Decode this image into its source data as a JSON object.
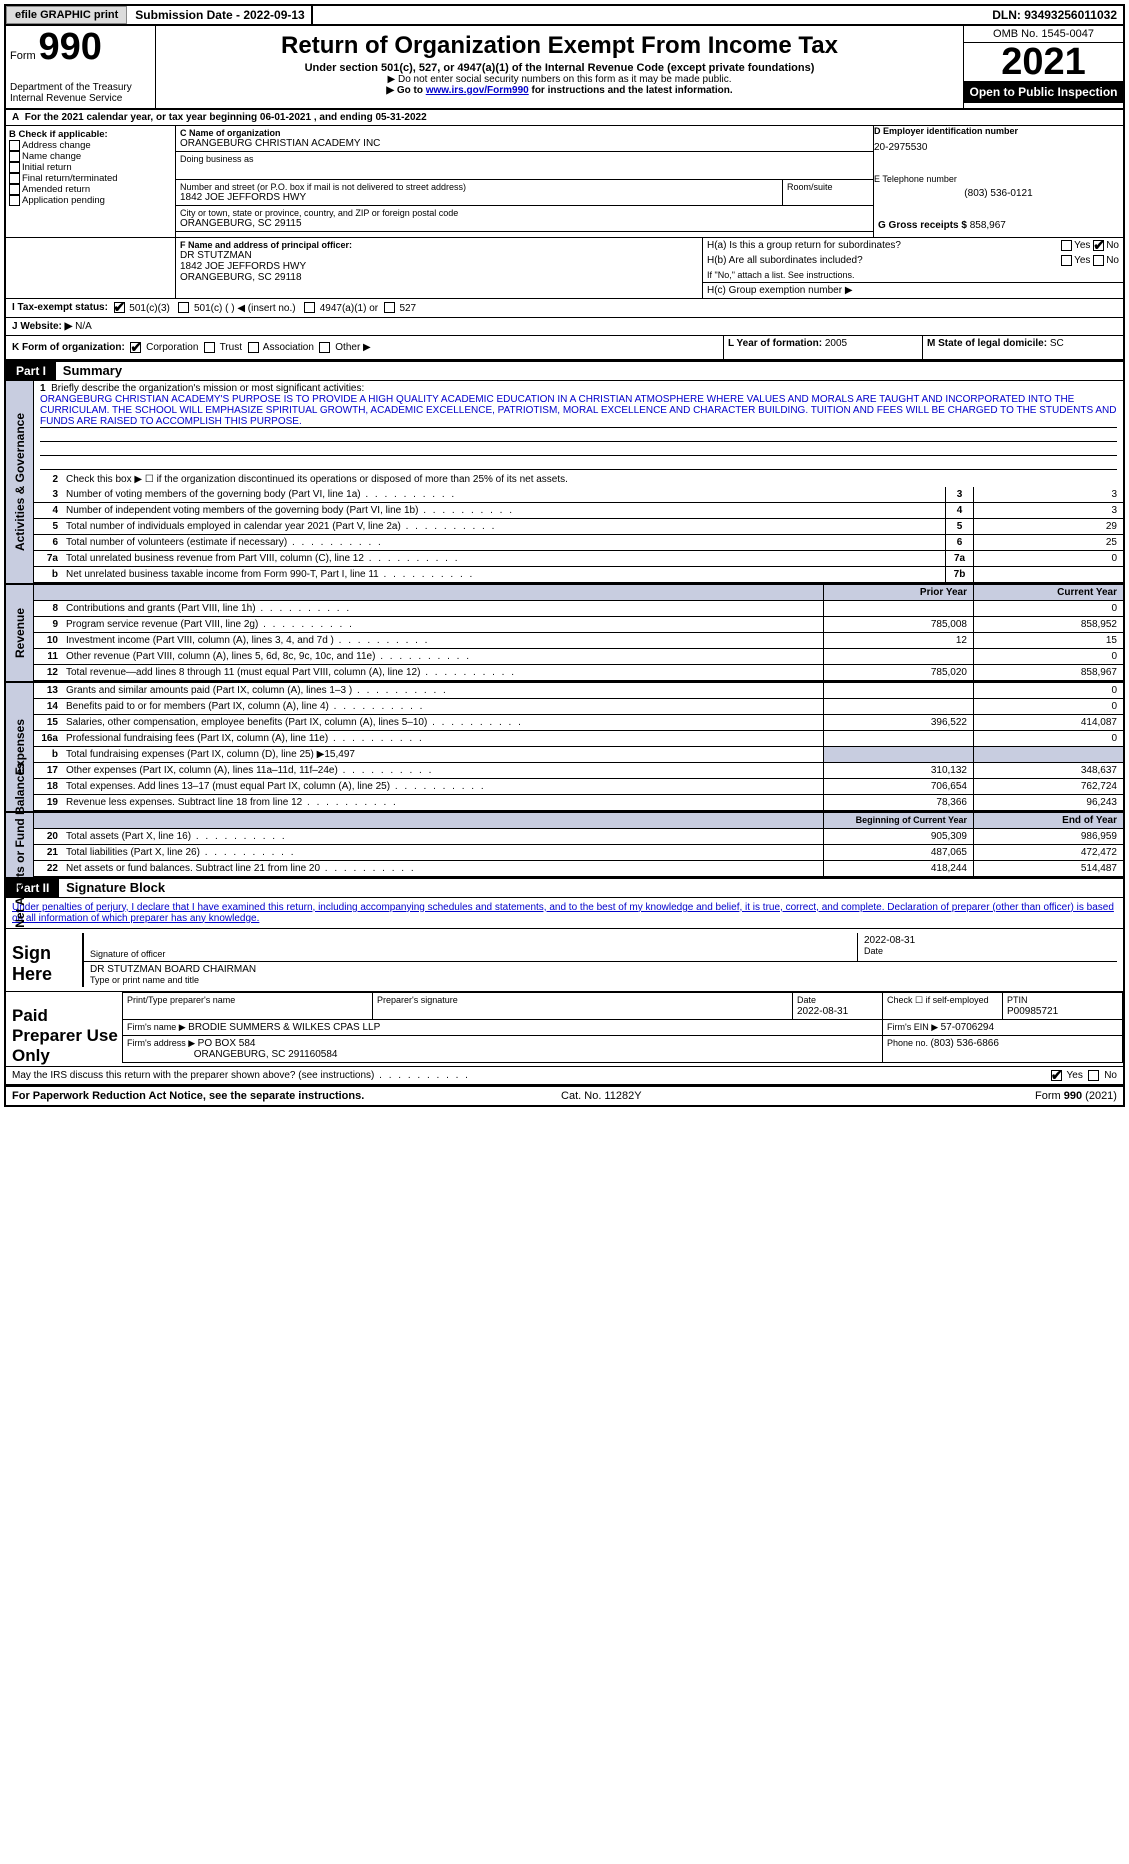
{
  "topbar": {
    "efile": "efile GRAPHIC print",
    "subdate_label": "Submission Date - ",
    "subdate": "2022-09-13",
    "dln_label": "DLN: ",
    "dln": "93493256011032"
  },
  "header": {
    "form_word": "Form",
    "form_num": "990",
    "dept": "Department of the Treasury",
    "irs": "Internal Revenue Service",
    "title": "Return of Organization Exempt From Income Tax",
    "sub1": "Under section 501(c), 527, or 4947(a)(1) of the Internal Revenue Code (except private foundations)",
    "sub2": "▶ Do not enter social security numbers on this form as it may be made public.",
    "sub3a": "▶ Go to ",
    "sub3link": "www.irs.gov/Form990",
    "sub3b": " for instructions and the latest information.",
    "omb": "OMB No. 1545-0047",
    "year": "2021",
    "open": "Open to Public Inspection"
  },
  "period": {
    "text_a": "For the 2021 calendar year, or tax year beginning ",
    "begin": "06-01-2021",
    "text_b": " , and ending ",
    "end": "05-31-2022"
  },
  "boxB": {
    "label": "B Check if applicable:",
    "items": [
      "Address change",
      "Name change",
      "Initial return",
      "Final return/terminated",
      "Amended return",
      "Application pending"
    ]
  },
  "boxC": {
    "name_label": "C Name of organization",
    "name": "ORANGEBURG CHRISTIAN ACADEMY INC",
    "dba_label": "Doing business as",
    "dba": "",
    "street_label": "Number and street (or P.O. box if mail is not delivered to street address)",
    "street": "1842 JOE JEFFORDS HWY",
    "room_label": "Room/suite",
    "city_label": "City or town, state or province, country, and ZIP or foreign postal code",
    "city": "ORANGEBURG, SC  29115"
  },
  "boxD": {
    "label": "D Employer identification number",
    "val": "20-2975530"
  },
  "boxE": {
    "label": "E Telephone number",
    "val": "(803) 536-0121"
  },
  "boxG": {
    "label": "G Gross receipts $ ",
    "val": "858,967"
  },
  "boxF": {
    "label": "F Name and address of principal officer:",
    "name": "DR STUTZMAN",
    "street": "1842 JOE JEFFORDS HWY",
    "city": "ORANGEBURG, SC  29118"
  },
  "boxH": {
    "ha": "H(a)  Is this a group return for subordinates?",
    "hb": "H(b)  Are all subordinates included?",
    "hb_note": "If \"No,\" attach a list. See instructions.",
    "hc": "H(c)  Group exemption number ▶",
    "yes": "Yes",
    "no": "No"
  },
  "boxI": {
    "label": "I   Tax-exempt status:",
    "c3": "501(c)(3)",
    "c": "501(c) (  ) ◀ (insert no.)",
    "a1": "4947(a)(1) or",
    "527": "527"
  },
  "boxJ": {
    "label": "J   Website: ▶",
    "val": "N/A"
  },
  "boxK": {
    "label": "K Form of organization:",
    "corp": "Corporation",
    "trust": "Trust",
    "assoc": "Association",
    "other": "Other ▶"
  },
  "boxL": {
    "label": "L Year of formation: ",
    "val": "2005"
  },
  "boxM": {
    "label": "M State of legal domicile: ",
    "val": "SC"
  },
  "part1": {
    "hdr": "Part I",
    "title": "Summary"
  },
  "mission": {
    "num": "1",
    "label": "Briefly describe the organization's mission or most significant activities:",
    "text": "ORANGEBURG CHRISTIAN ACADEMY'S PURPOSE IS TO PROVIDE A HIGH QUALITY ACADEMIC EDUCATION IN A CHRISTIAN ATMOSPHERE WHERE VALUES AND MORALS ARE TAUGHT AND INCORPORATED INTO THE CURRICULAM. THE SCHOOL WILL EMPHASIZE SPIRITUAL GROWTH, ACADEMIC EXCELLENCE, PATRIOTISM, MORAL EXCELLENCE AND CHARACTER BUILDING. TUITION AND FEES WILL BE CHARGED TO THE STUDENTS AND FUNDS ARE RAISED TO ACCOMPLISH THIS PURPOSE."
  },
  "line2": "Check this box ▶ ☐ if the organization discontinued its operations or disposed of more than 25% of its net assets.",
  "govlines": [
    {
      "n": "3",
      "d": "Number of voting members of the governing body (Part VI, line 1a)",
      "b": "3",
      "v": "3"
    },
    {
      "n": "4",
      "d": "Number of independent voting members of the governing body (Part VI, line 1b)",
      "b": "4",
      "v": "3"
    },
    {
      "n": "5",
      "d": "Total number of individuals employed in calendar year 2021 (Part V, line 2a)",
      "b": "5",
      "v": "29"
    },
    {
      "n": "6",
      "d": "Total number of volunteers (estimate if necessary)",
      "b": "6",
      "v": "25"
    },
    {
      "n": "7a",
      "d": "Total unrelated business revenue from Part VIII, column (C), line 12",
      "b": "7a",
      "v": "0"
    },
    {
      "n": "b",
      "d": "Net unrelated business taxable income from Form 990-T, Part I, line 11",
      "b": "7b",
      "v": ""
    }
  ],
  "colhdr": {
    "prior": "Prior Year",
    "curr": "Current Year",
    "boy": "Beginning of Current Year",
    "eoy": "End of Year"
  },
  "revenue": [
    {
      "n": "8",
      "d": "Contributions and grants (Part VIII, line 1h)",
      "p": "",
      "c": "0"
    },
    {
      "n": "9",
      "d": "Program service revenue (Part VIII, line 2g)",
      "p": "785,008",
      "c": "858,952"
    },
    {
      "n": "10",
      "d": "Investment income (Part VIII, column (A), lines 3, 4, and 7d )",
      "p": "12",
      "c": "15"
    },
    {
      "n": "11",
      "d": "Other revenue (Part VIII, column (A), lines 5, 6d, 8c, 9c, 10c, and 11e)",
      "p": "",
      "c": "0"
    },
    {
      "n": "12",
      "d": "Total revenue—add lines 8 through 11 (must equal Part VIII, column (A), line 12)",
      "p": "785,020",
      "c": "858,967"
    }
  ],
  "expenses": [
    {
      "n": "13",
      "d": "Grants and similar amounts paid (Part IX, column (A), lines 1–3 )",
      "p": "",
      "c": "0"
    },
    {
      "n": "14",
      "d": "Benefits paid to or for members (Part IX, column (A), line 4)",
      "p": "",
      "c": "0"
    },
    {
      "n": "15",
      "d": "Salaries, other compensation, employee benefits (Part IX, column (A), lines 5–10)",
      "p": "396,522",
      "c": "414,087"
    },
    {
      "n": "16a",
      "d": "Professional fundraising fees (Part IX, column (A), line 11e)",
      "p": "",
      "c": "0"
    },
    {
      "n": "b",
      "d": "Total fundraising expenses (Part IX, column (D), line 25) ▶15,497",
      "p": "",
      "c": "",
      "shade": true
    },
    {
      "n": "17",
      "d": "Other expenses (Part IX, column (A), lines 11a–11d, 11f–24e)",
      "p": "310,132",
      "c": "348,637"
    },
    {
      "n": "18",
      "d": "Total expenses. Add lines 13–17 (must equal Part IX, column (A), line 25)",
      "p": "706,654",
      "c": "762,724"
    },
    {
      "n": "19",
      "d": "Revenue less expenses. Subtract line 18 from line 12",
      "p": "78,366",
      "c": "96,243"
    }
  ],
  "netassets": [
    {
      "n": "20",
      "d": "Total assets (Part X, line 16)",
      "p": "905,309",
      "c": "986,959"
    },
    {
      "n": "21",
      "d": "Total liabilities (Part X, line 26)",
      "p": "487,065",
      "c": "472,472"
    },
    {
      "n": "22",
      "d": "Net assets or fund balances. Subtract line 21 from line 20",
      "p": "418,244",
      "c": "514,487"
    }
  ],
  "sidelabels": {
    "gov": "Activities & Governance",
    "rev": "Revenue",
    "exp": "Expenses",
    "net": "Net Assets or Fund Balances"
  },
  "part2": {
    "hdr": "Part II",
    "title": "Signature Block"
  },
  "penalty": "Under penalties of perjury, I declare that I have examined this return, including accompanying schedules and statements, and to the best of my knowledge and belief, it is true, correct, and complete. Declaration of preparer (other than officer) is based on all information of which preparer has any knowledge.",
  "sign": {
    "here": "Sign Here",
    "sig_label": "Signature of officer",
    "date_label": "Date",
    "date": "2022-08-31",
    "name": "DR STUTZMAN  BOARD CHAIRMAN",
    "name_label": "Type or print name and title"
  },
  "paid": {
    "label": "Paid Preparer Use Only",
    "h_print": "Print/Type preparer's name",
    "h_sig": "Preparer's signature",
    "h_date": "Date",
    "date": "2022-08-31",
    "self": "Check ☐ if self-employed",
    "ptin_label": "PTIN",
    "ptin": "P00985721",
    "firm_label": "Firm's name    ▶ ",
    "firm": "BRODIE SUMMERS & WILKES CPAS LLP",
    "ein_label": "Firm's EIN ▶ ",
    "ein": "57-0706294",
    "addr_label": "Firm's address ▶ ",
    "addr1": "PO BOX 584",
    "addr2": "ORANGEBURG, SC  291160584",
    "phone_label": "Phone no. ",
    "phone": "(803) 536-6866"
  },
  "discuss": {
    "q": "May the IRS discuss this return with the preparer shown above? (see instructions)",
    "yes": "Yes",
    "no": "No"
  },
  "footer": {
    "left": "For Paperwork Reduction Act Notice, see the separate instructions.",
    "mid": "Cat. No. 11282Y",
    "right": "Form 990 (2021)"
  }
}
